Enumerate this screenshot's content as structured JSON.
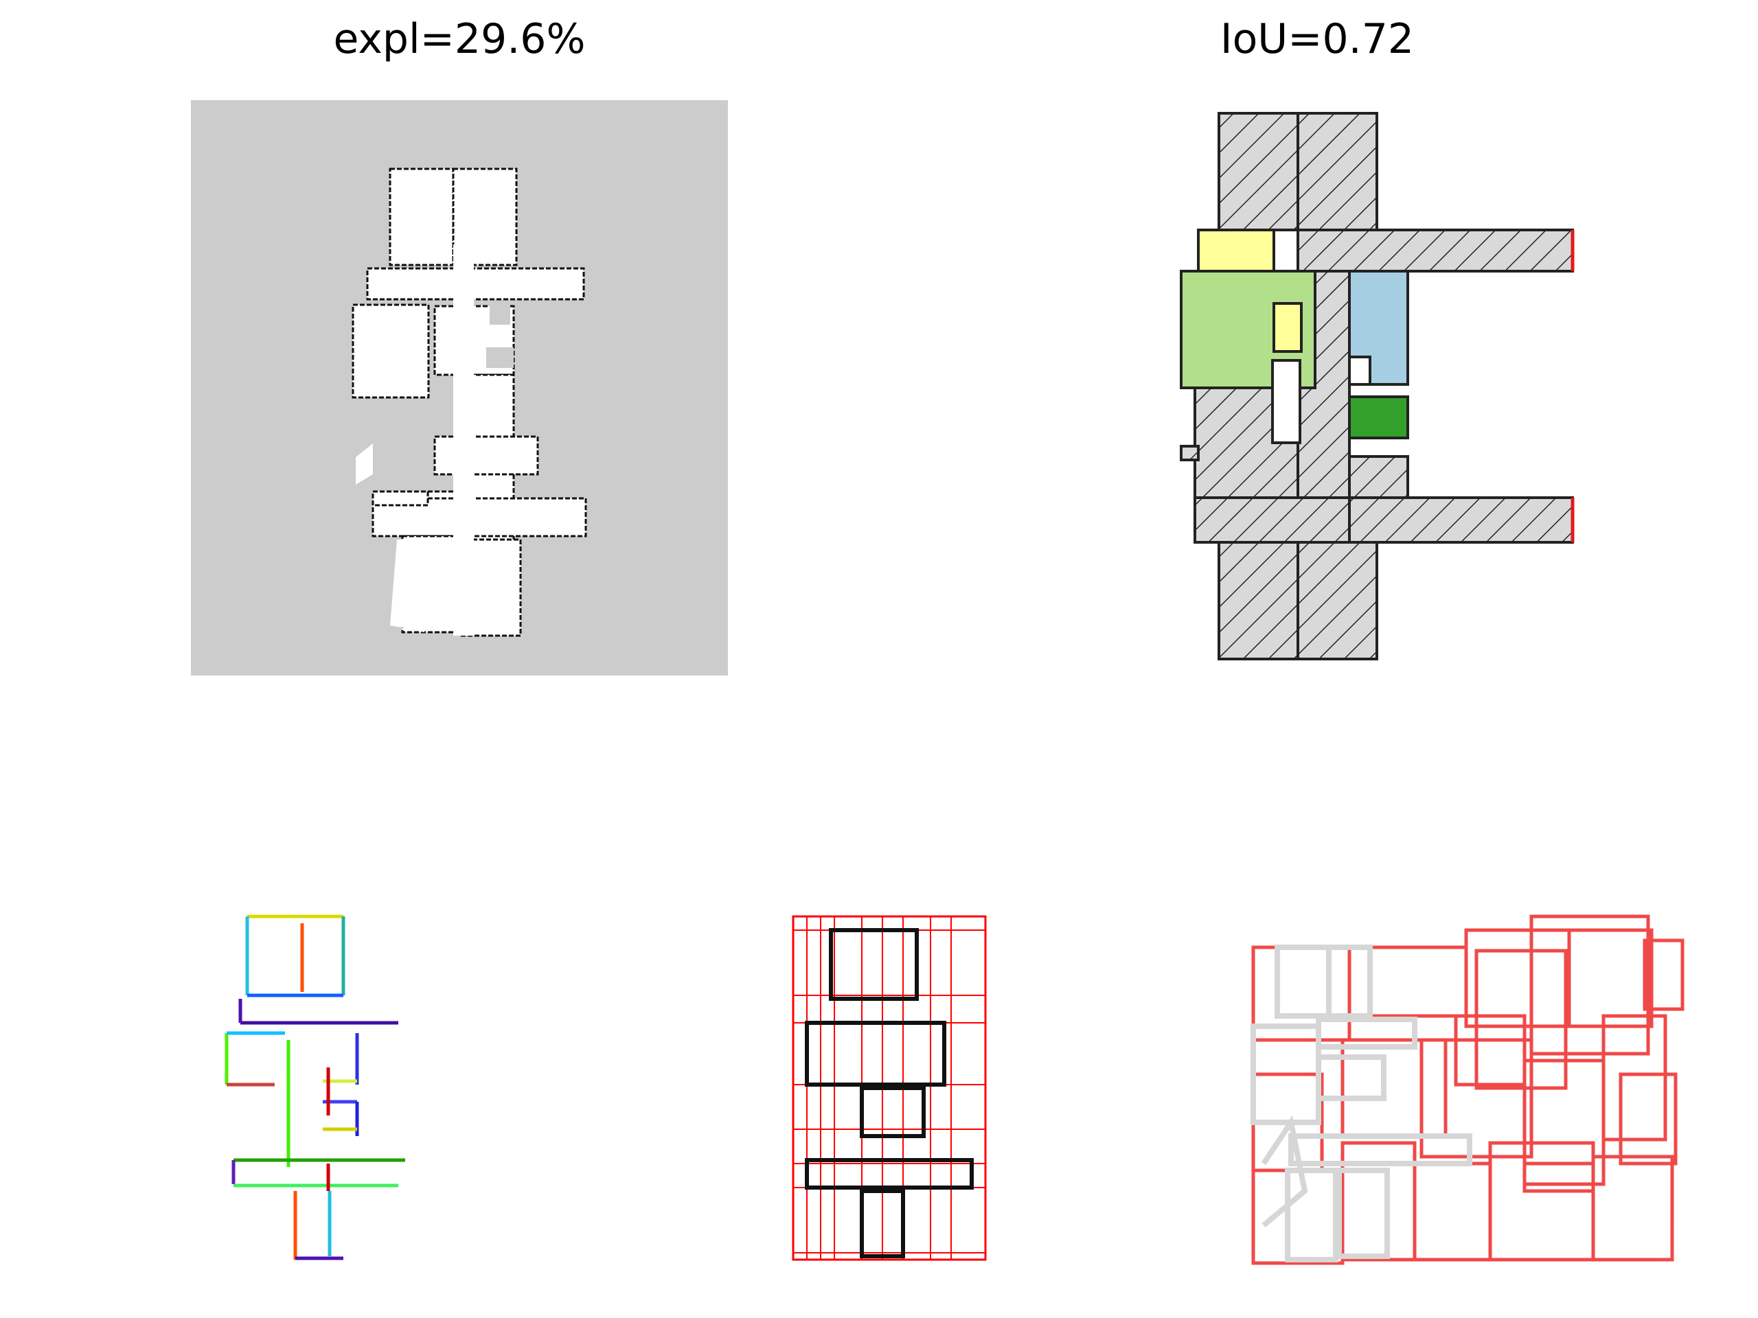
{
  "figure": {
    "panel_titles": {
      "exploration": "expl=29.6%",
      "iou": "IoU=0.72"
    }
  }
}
